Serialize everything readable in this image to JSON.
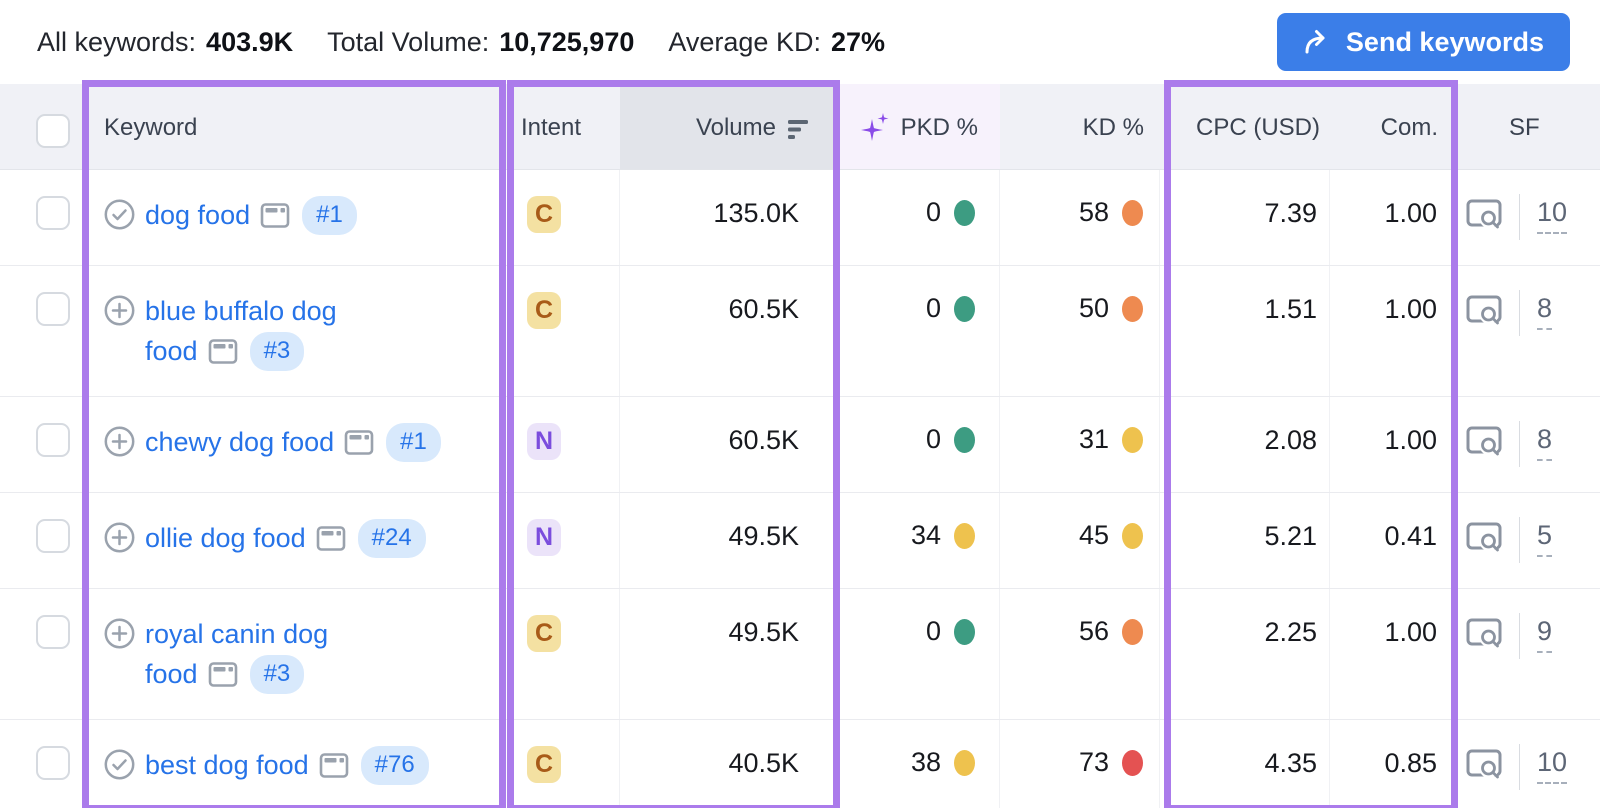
{
  "summary": {
    "all_keywords_label": "All keywords:",
    "all_keywords_value": "403.9K",
    "total_volume_label": "Total Volume:",
    "total_volume_value": "10,725,970",
    "average_kd_label": "Average KD:",
    "average_kd_value": "27%",
    "send_keywords_label": "Send keywords"
  },
  "table": {
    "columns": {
      "keyword": "Keyword",
      "intent": "Intent",
      "volume": "Volume",
      "pkd": "PKD %",
      "kd": "KD %",
      "cpc": "CPC (USD)",
      "com": "Com.",
      "sf": "SF"
    },
    "rows": [
      {
        "keyword": "dog food",
        "keyword_lines": [
          "dog food"
        ],
        "state": "added",
        "rank": "#1",
        "intent": "C",
        "volume": "135.0K",
        "pkd": "0",
        "pkd_level": "green",
        "kd": "58",
        "kd_level": "orange",
        "cpc": "7.39",
        "com": "1.00",
        "sf": "10"
      },
      {
        "keyword": "blue buffalo dog food",
        "keyword_lines": [
          "blue buffalo dog",
          "food"
        ],
        "state": "addable",
        "rank": "#3",
        "intent": "C",
        "volume": "60.5K",
        "pkd": "0",
        "pkd_level": "green",
        "kd": "50",
        "kd_level": "orange",
        "cpc": "1.51",
        "com": "1.00",
        "sf": "8"
      },
      {
        "keyword": "chewy dog food",
        "keyword_lines": [
          "chewy dog food"
        ],
        "state": "addable",
        "rank": "#1",
        "intent": "N",
        "volume": "60.5K",
        "pkd": "0",
        "pkd_level": "green",
        "kd": "31",
        "kd_level": "yellow",
        "cpc": "2.08",
        "com": "1.00",
        "sf": "8"
      },
      {
        "keyword": "ollie dog food",
        "keyword_lines": [
          "ollie dog food"
        ],
        "state": "addable",
        "rank": "#24",
        "intent": "N",
        "volume": "49.5K",
        "pkd": "34",
        "pkd_level": "yellow",
        "kd": "45",
        "kd_level": "yellow",
        "cpc": "5.21",
        "com": "0.41",
        "sf": "5"
      },
      {
        "keyword": "royal canin dog food",
        "keyword_lines": [
          "royal canin dog",
          "food"
        ],
        "state": "addable",
        "rank": "#3",
        "intent": "C",
        "volume": "49.5K",
        "pkd": "0",
        "pkd_level": "green",
        "kd": "56",
        "kd_level": "orange",
        "cpc": "2.25",
        "com": "1.00",
        "sf": "9"
      },
      {
        "keyword": "best dog food",
        "keyword_lines": [
          "best dog food"
        ],
        "state": "added",
        "rank": "#76",
        "intent": "C",
        "volume": "40.5K",
        "pkd": "38",
        "pkd_level": "yellow",
        "kd": "73",
        "kd_level": "red",
        "cpc": "4.35",
        "com": "0.85",
        "sf": "10"
      }
    ]
  },
  "colors": {
    "accent_blue": "#3b7ee8",
    "link_blue": "#2673e8",
    "highlight_purple": "#ab7beb",
    "intent_commercial_bg": "#f4e1a2",
    "intent_commercial_text": "#a85b18",
    "intent_navigational_bg": "#ebe3f9",
    "intent_navigational_text": "#7b4ddd",
    "dot_green": "#3d9c82",
    "dot_yellow": "#eec24e",
    "dot_orange": "#ee8a50",
    "dot_red": "#e45252"
  }
}
